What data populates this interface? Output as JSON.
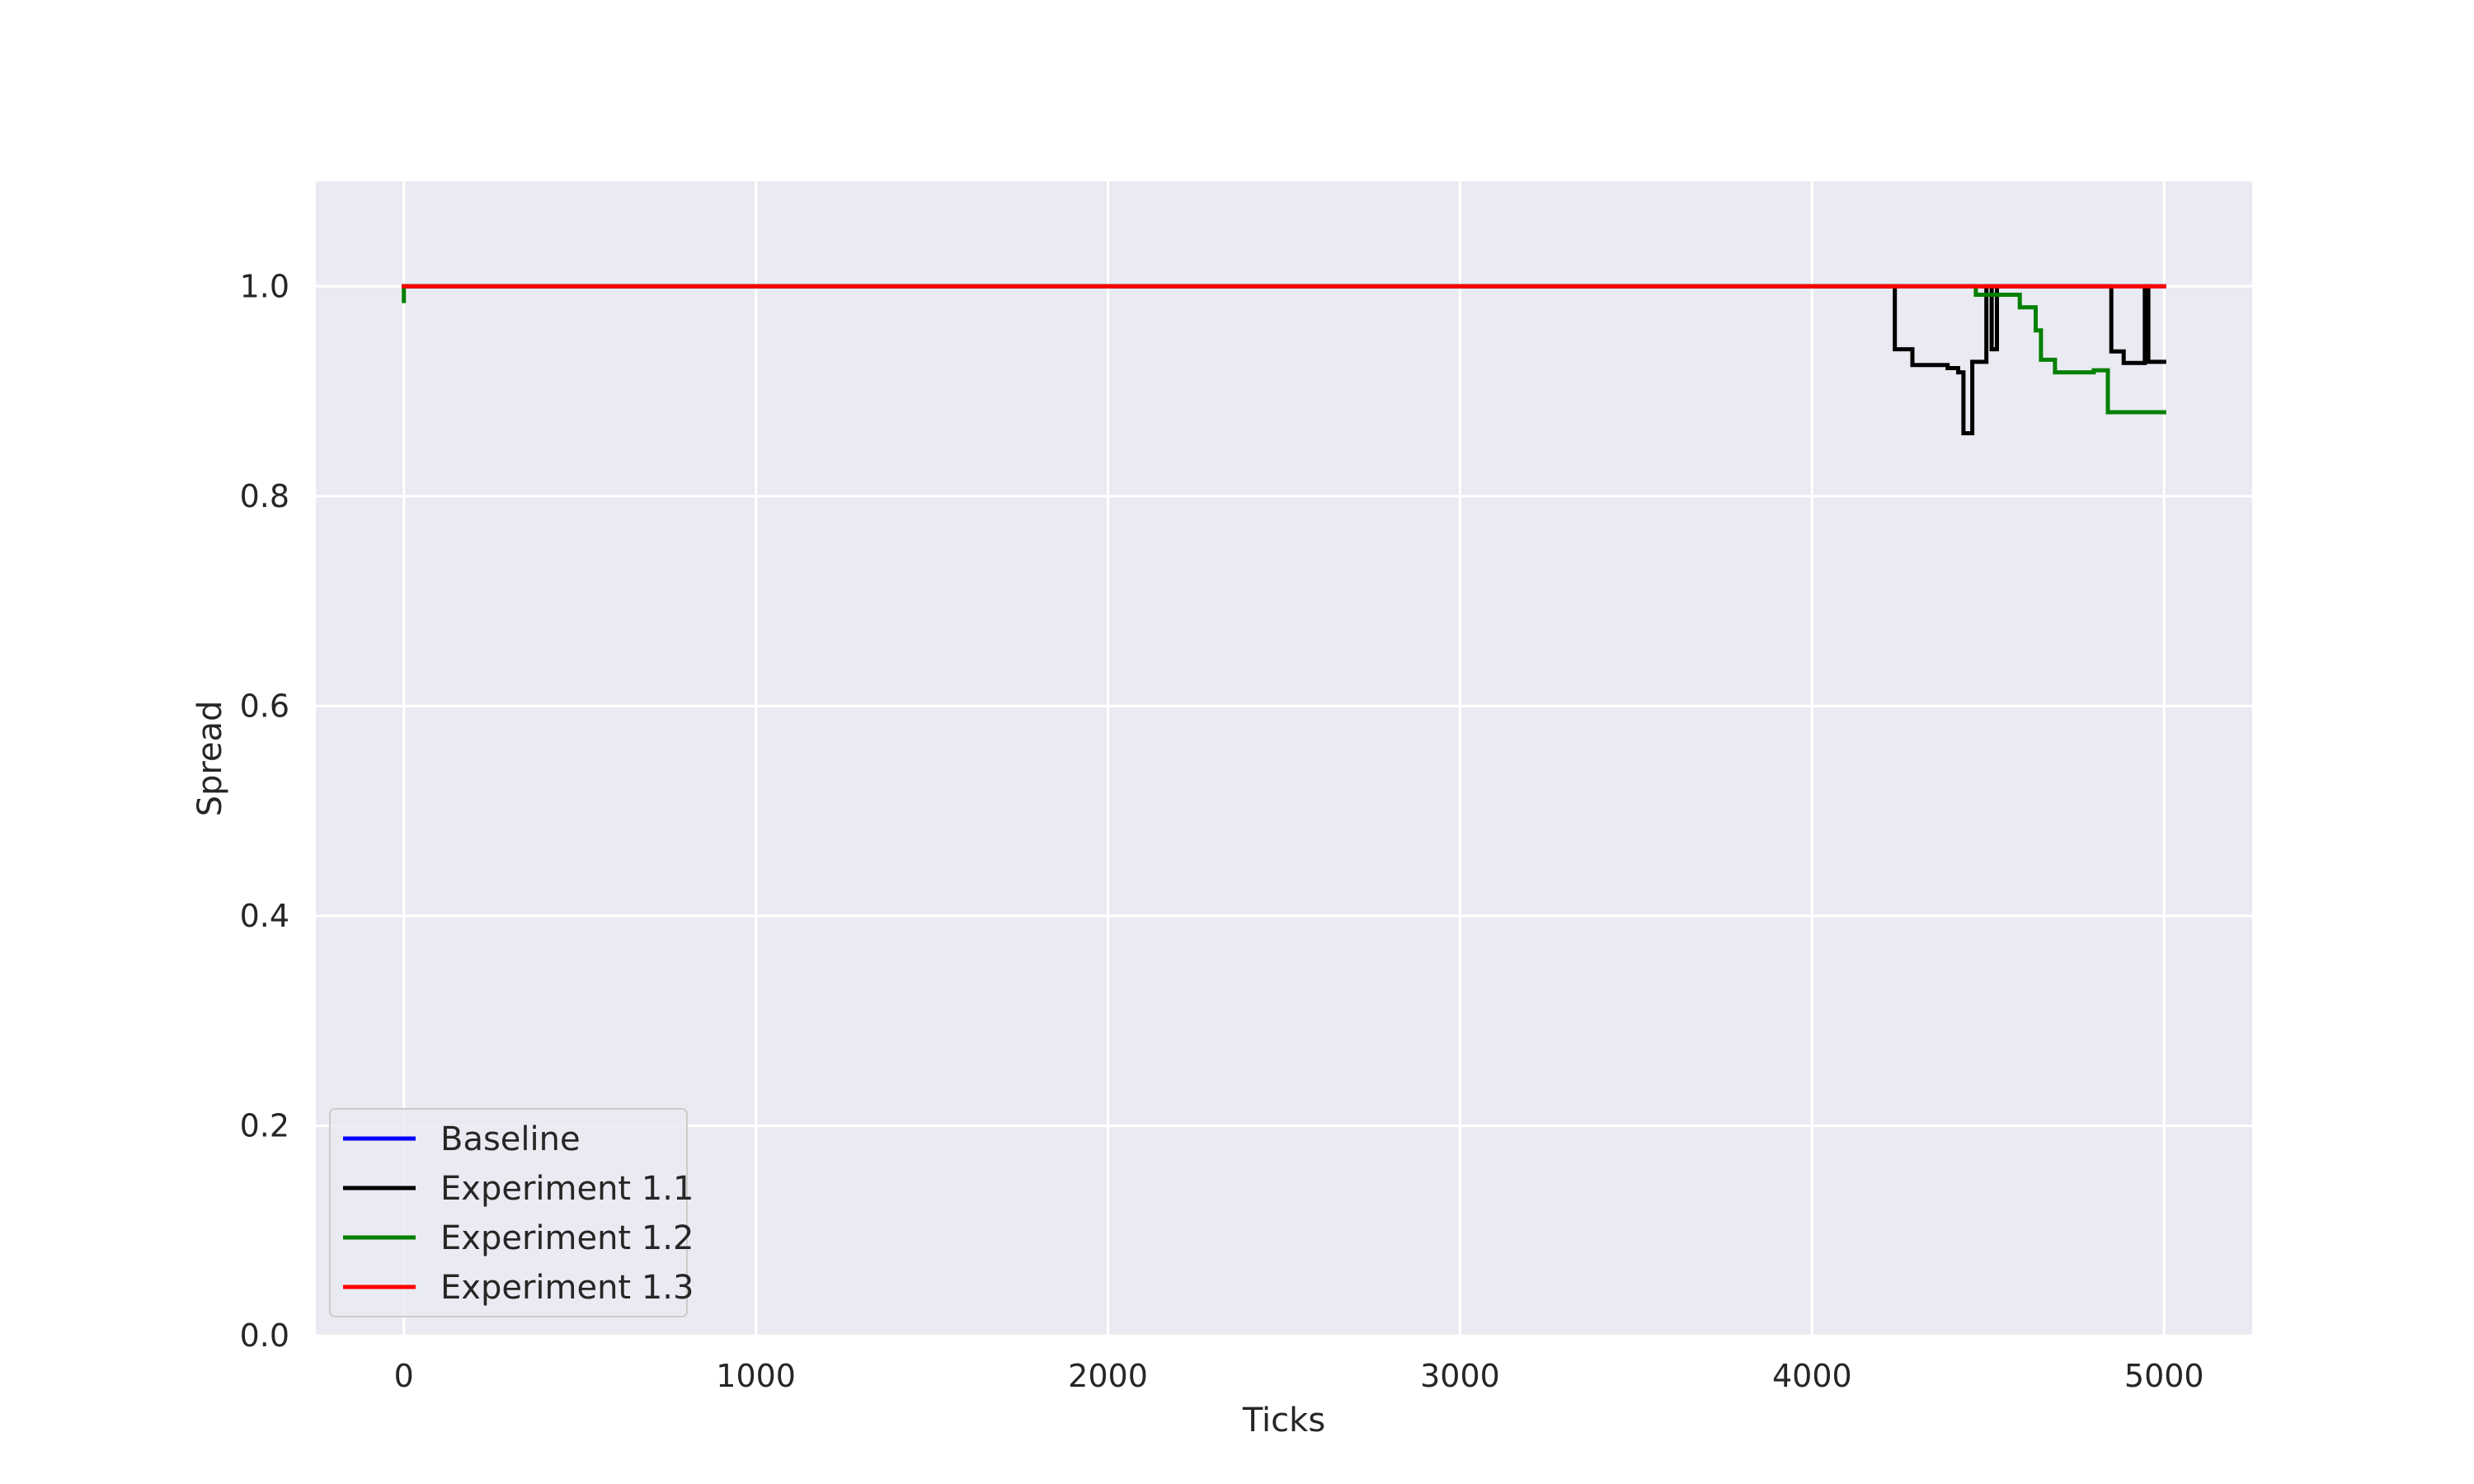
{
  "chart_data": {
    "type": "line",
    "title": "",
    "xlabel": "Ticks",
    "ylabel": "Spread",
    "xlim": [
      -250,
      5250
    ],
    "ylim": [
      0.0,
      1.1
    ],
    "xticks": [
      0,
      1000,
      2000,
      3000,
      4000,
      5000
    ],
    "xtick_labels": [
      "0",
      "1000",
      "2000",
      "3000",
      "4000",
      "5000"
    ],
    "yticks": [
      0.0,
      0.2,
      0.4,
      0.6,
      0.8,
      1.0
    ],
    "ytick_labels": [
      "0.0",
      "0.2",
      "0.4",
      "0.6",
      "0.8",
      "1.0"
    ],
    "grid": true,
    "legend_position": "lower-left",
    "colors": {
      "background": "#eaeaf2",
      "grid": "#ffffff"
    },
    "series": [
      {
        "name": "Baseline",
        "color": "#0000ff",
        "x": [
          0,
          5000
        ],
        "y": [
          1.0,
          1.0
        ]
      },
      {
        "name": "Experiment 1.1",
        "color": "#000000",
        "x": [
          0,
          4235,
          4235,
          4285,
          4285,
          4385,
          4385,
          4415,
          4415,
          4430,
          4430,
          4455,
          4455,
          4495,
          4495,
          4510,
          4510,
          4525,
          4525,
          4545,
          4545,
          4850,
          4850,
          4885,
          4885,
          4945,
          4945,
          4955,
          4955,
          5000
        ],
        "y": [
          1.0,
          1.0,
          0.94,
          0.94,
          0.925,
          0.925,
          0.922,
          0.922,
          0.918,
          0.918,
          0.86,
          0.86,
          0.928,
          0.928,
          1.0,
          1.0,
          0.94,
          0.94,
          1.0,
          1.0,
          1.0,
          1.0,
          0.938,
          0.938,
          0.927,
          0.927,
          1.0,
          1.0,
          0.928,
          0.928
        ]
      },
      {
        "name": "Experiment 1.2",
        "color": "#008000",
        "x": [
          0,
          0,
          4465,
          4465,
          4590,
          4590,
          4635,
          4635,
          4650,
          4650,
          4690,
          4690,
          4800,
          4800,
          4840,
          4840,
          5000
        ],
        "y": [
          0.986,
          1.0,
          1.0,
          0.992,
          0.992,
          0.98,
          0.98,
          0.958,
          0.958,
          0.93,
          0.93,
          0.918,
          0.918,
          0.92,
          0.92,
          0.88,
          0.88
        ]
      },
      {
        "name": "Experiment 1.3",
        "color": "#ff0000",
        "x": [
          0,
          5000
        ],
        "y": [
          1.0,
          1.0
        ]
      }
    ]
  }
}
